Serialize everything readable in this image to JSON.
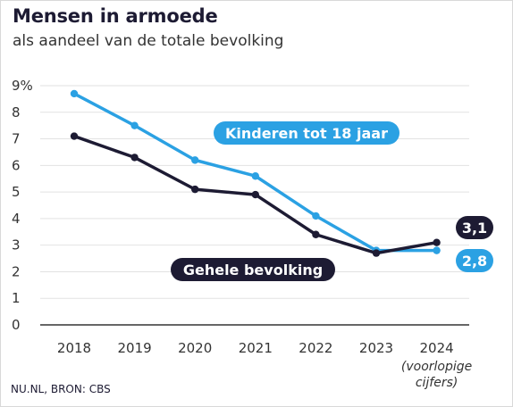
{
  "header": {
    "title": "Mensen in armoede",
    "subtitle": "als aandeel van de totale bevolking"
  },
  "footer": {
    "source": "NU.NL, BRON: CBS"
  },
  "colors": {
    "kinderen": "#2ba1e3",
    "bevolking": "#1d1b33",
    "grid": "#e2e2e2",
    "axis": "#333333"
  },
  "chart_data": {
    "type": "line",
    "title": "Mensen in armoede",
    "subtitle": "als aandeel van de totale bevolking",
    "categories": [
      "2018",
      "2019",
      "2020",
      "2021",
      "2022",
      "2023",
      "2024"
    ],
    "x_note": [
      "(voorlopige",
      "cijfers)"
    ],
    "y_ticks": [
      "0",
      "1",
      "2",
      "3",
      "4",
      "5",
      "6",
      "7",
      "8",
      "9%"
    ],
    "ylim": [
      0,
      9
    ],
    "grid": true,
    "series": [
      {
        "key": "kinderen",
        "name": "Kinderen tot 18 jaar",
        "values": [
          8.7,
          7.5,
          6.2,
          5.6,
          4.1,
          2.8,
          2.8
        ],
        "end_label": "2,8"
      },
      {
        "key": "bevolking",
        "name": "Gehele bevolking",
        "values": [
          7.1,
          6.3,
          5.1,
          4.9,
          3.4,
          2.7,
          3.1
        ],
        "end_label": "3,1"
      }
    ]
  }
}
